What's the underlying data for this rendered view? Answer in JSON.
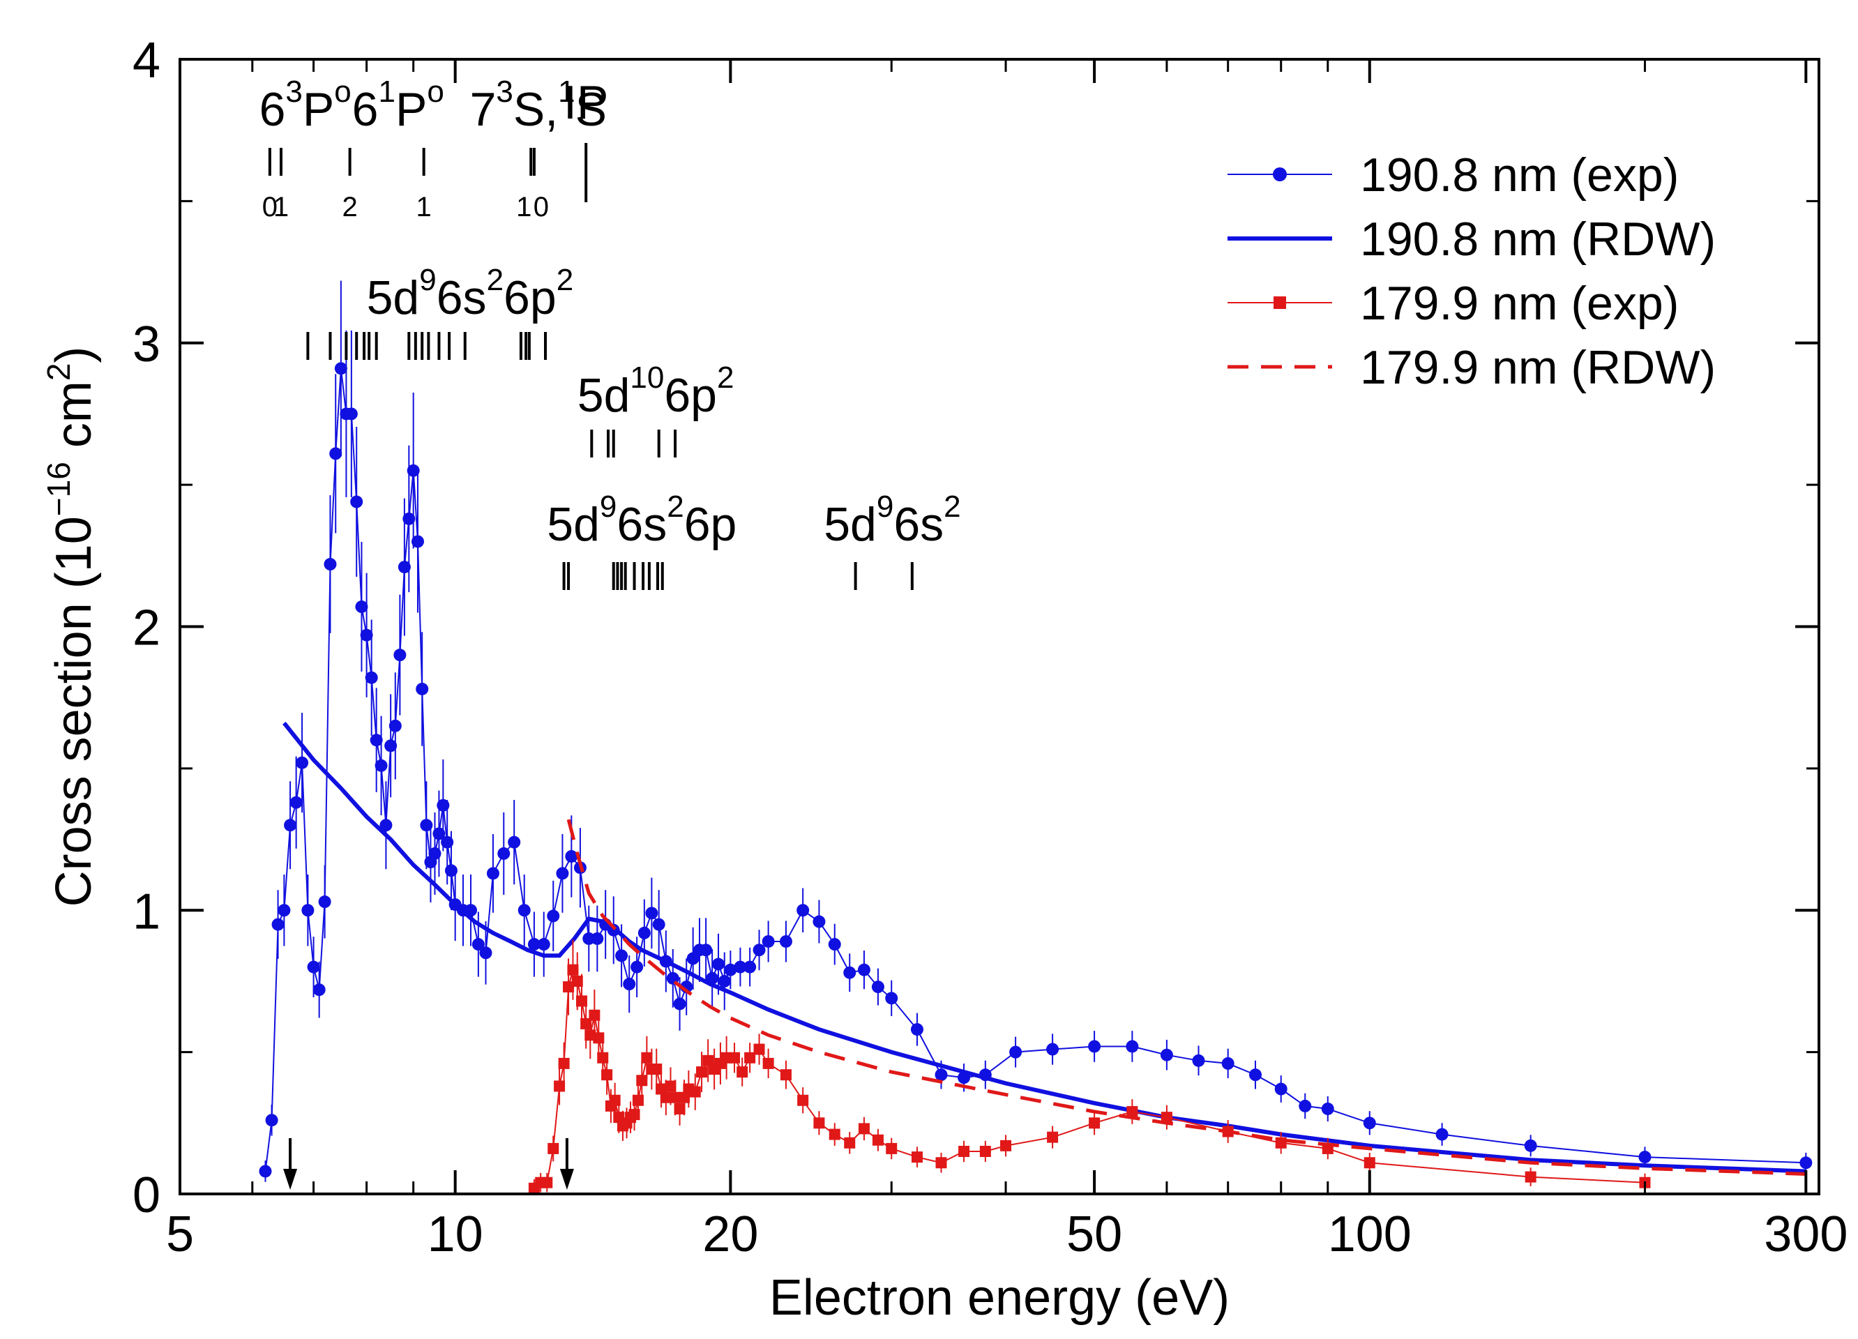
{
  "chart_data": {
    "type": "scatter",
    "xlabel": "Electron energy (eV)",
    "ylabel_parts": {
      "pre": "Cross section (10",
      "exp": "−16",
      "mid": " cm",
      "exp2": "2",
      "post": ")"
    },
    "xscale": "log",
    "xlim": [
      5,
      310
    ],
    "ylim": [
      0,
      4
    ],
    "x_ticks": [
      5,
      10,
      20,
      50,
      100,
      300
    ],
    "x_tick_labels": [
      "5",
      "10",
      "20",
      "50",
      "100",
      "300"
    ],
    "x_minor_ticks": [
      6,
      7,
      8,
      9,
      30,
      40,
      60,
      70,
      80,
      90,
      200
    ],
    "y_ticks": [
      0,
      1,
      2,
      3,
      4
    ],
    "y_tick_labels": [
      "0",
      "1",
      "2",
      "3",
      "4"
    ],
    "y_minor_ticks": [
      0.5,
      1.5,
      2.5,
      3.5
    ],
    "legend_position": "top-right",
    "series": [
      {
        "name": "190.8 nm (exp)",
        "color": "#1010e0",
        "marker": "circle",
        "line": "thin-solid",
        "x": [
          6.2,
          6.3,
          6.4,
          6.5,
          6.6,
          6.7,
          6.8,
          6.9,
          7.0,
          7.1,
          7.2,
          7.3,
          7.4,
          7.5,
          7.6,
          7.7,
          7.8,
          7.9,
          8.0,
          8.1,
          8.2,
          8.3,
          8.4,
          8.5,
          8.6,
          8.7,
          8.8,
          8.9,
          9.0,
          9.1,
          9.2,
          9.3,
          9.4,
          9.5,
          9.6,
          9.7,
          9.8,
          9.9,
          10.0,
          10.2,
          10.4,
          10.6,
          10.8,
          11.0,
          11.3,
          11.6,
          11.9,
          12.2,
          12.5,
          12.8,
          13.1,
          13.4,
          13.7,
          14.0,
          14.3,
          14.6,
          14.9,
          15.2,
          15.5,
          15.8,
          16.1,
          16.4,
          16.7,
          17.0,
          17.3,
          17.6,
          17.9,
          18.2,
          18.5,
          18.8,
          19.1,
          19.4,
          19.7,
          20.0,
          20.5,
          21.0,
          21.5,
          22.0,
          23.0,
          24.0,
          25.0,
          26.0,
          27.0,
          28.0,
          29.0,
          30.0,
          32.0,
          34.0,
          36.0,
          38.0,
          41.0,
          45.0,
          50.0,
          55.0,
          60.0,
          65.0,
          70.0,
          75.0,
          80.0,
          85.0,
          90.0,
          100.0,
          120.0,
          150.0,
          200.0,
          300.0
        ],
        "y": [
          0.08,
          0.26,
          0.95,
          1.0,
          1.3,
          1.38,
          1.52,
          1.0,
          0.8,
          0.72,
          1.03,
          2.22,
          2.61,
          2.91,
          2.75,
          2.75,
          2.44,
          2.07,
          1.97,
          1.82,
          1.6,
          1.51,
          1.3,
          1.58,
          1.65,
          1.9,
          2.21,
          2.38,
          2.55,
          2.3,
          1.78,
          1.3,
          1.17,
          1.2,
          1.27,
          1.37,
          1.24,
          1.14,
          1.02,
          1.0,
          1.0,
          0.88,
          0.85,
          1.13,
          1.2,
          1.24,
          1.0,
          0.88,
          0.88,
          0.98,
          1.13,
          1.19,
          1.15,
          0.9,
          0.9,
          0.95,
          0.93,
          0.84,
          0.74,
          0.8,
          0.92,
          0.99,
          0.95,
          0.82,
          0.76,
          0.67,
          0.73,
          0.83,
          0.86,
          0.86,
          0.76,
          0.81,
          0.75,
          0.79,
          0.8,
          0.8,
          0.86,
          0.89,
          0.89,
          1.0,
          0.96,
          0.88,
          0.78,
          0.79,
          0.73,
          0.69,
          0.58,
          0.42,
          0.41,
          0.42,
          0.5,
          0.51,
          0.52,
          0.52,
          0.49,
          0.47,
          0.46,
          0.42,
          0.37,
          0.31,
          0.3,
          0.25,
          0.21,
          0.17,
          0.13,
          0.11
        ]
      },
      {
        "name": "190.8 nm (RDW)",
        "color": "#1010e0",
        "marker": "none",
        "line": "thick-solid",
        "x": [
          6.5,
          7.0,
          7.5,
          8.0,
          8.5,
          9.0,
          9.5,
          10.0,
          10.5,
          11.0,
          11.5,
          12.0,
          12.5,
          13.0,
          13.5,
          14.0,
          14.5,
          15.0,
          15.5,
          16.0,
          17.0,
          18.0,
          19.0,
          20.0,
          22.0,
          25.0,
          30.0,
          40.0,
          50.0,
          60.0,
          70.0,
          80.0,
          100.0,
          150.0,
          200.0,
          300.0
        ],
        "y": [
          1.66,
          1.53,
          1.43,
          1.33,
          1.25,
          1.16,
          1.09,
          1.02,
          0.96,
          0.92,
          0.89,
          0.86,
          0.84,
          0.84,
          0.9,
          0.97,
          0.96,
          0.93,
          0.89,
          0.86,
          0.82,
          0.78,
          0.74,
          0.71,
          0.65,
          0.58,
          0.5,
          0.39,
          0.32,
          0.27,
          0.24,
          0.21,
          0.17,
          0.12,
          0.1,
          0.08
        ]
      },
      {
        "name": "179.9 nm (exp)",
        "color": "#e01818",
        "marker": "square",
        "line": "thin-solid",
        "x": [
          12.2,
          12.4,
          12.6,
          12.8,
          13.0,
          13.15,
          13.3,
          13.45,
          13.6,
          13.75,
          13.9,
          14.05,
          14.2,
          14.35,
          14.5,
          14.65,
          14.8,
          14.95,
          15.1,
          15.25,
          15.4,
          15.55,
          15.7,
          15.85,
          16.0,
          16.2,
          16.4,
          16.6,
          16.8,
          17.0,
          17.2,
          17.4,
          17.6,
          17.8,
          18.0,
          18.3,
          18.6,
          18.9,
          19.2,
          19.5,
          19.8,
          20.2,
          20.6,
          21.0,
          21.5,
          22.0,
          23.0,
          24.0,
          25.0,
          26.0,
          27.0,
          28.0,
          29.0,
          30.0,
          32.0,
          34.0,
          36.0,
          38.0,
          40.0,
          45.0,
          50.0,
          55.0,
          60.0,
          70.0,
          80.0,
          90.0,
          100.0,
          150.0,
          200.0
        ],
        "y": [
          0.02,
          0.04,
          0.04,
          0.16,
          0.38,
          0.46,
          0.73,
          0.79,
          0.75,
          0.68,
          0.6,
          0.56,
          0.63,
          0.55,
          0.48,
          0.42,
          0.31,
          0.33,
          0.27,
          0.24,
          0.25,
          0.27,
          0.28,
          0.33,
          0.4,
          0.48,
          0.44,
          0.44,
          0.37,
          0.34,
          0.38,
          0.34,
          0.3,
          0.34,
          0.37,
          0.36,
          0.43,
          0.47,
          0.44,
          0.46,
          0.48,
          0.48,
          0.43,
          0.48,
          0.51,
          0.46,
          0.42,
          0.33,
          0.25,
          0.21,
          0.18,
          0.23,
          0.19,
          0.16,
          0.13,
          0.11,
          0.15,
          0.15,
          0.17,
          0.2,
          0.25,
          0.29,
          0.27,
          0.22,
          0.18,
          0.16,
          0.11,
          0.06,
          0.04
        ]
      },
      {
        "name": "179.9 nm (RDW)",
        "color": "#e01818",
        "marker": "none",
        "line": "dashed",
        "x": [
          13.3,
          13.6,
          14.0,
          14.5,
          15.0,
          15.5,
          16.0,
          17.0,
          18.0,
          19.0,
          20.0,
          22.0,
          25.0,
          30.0,
          40.0,
          50.0,
          60.0,
          70.0,
          80.0,
          100.0,
          150.0,
          200.0,
          300.0
        ],
        "y": [
          1.32,
          1.2,
          1.06,
          0.98,
          0.93,
          0.88,
          0.84,
          0.77,
          0.71,
          0.66,
          0.62,
          0.56,
          0.5,
          0.43,
          0.35,
          0.29,
          0.25,
          0.22,
          0.19,
          0.16,
          0.11,
          0.09,
          0.07
        ]
      }
    ],
    "annotations": {
      "group1": {
        "labels": [
          {
            "pre": "6",
            "sup": "3",
            "post": "P",
            "sup2": "o"
          },
          {
            "pre": "6",
            "sup": "1",
            "post": "P",
            "sup2": "o"
          },
          {
            "pre": "7",
            "sup": "3",
            "post": "S,",
            "sup2": "1",
            "post2": "S"
          },
          {
            "pre": "IP",
            "sup": "",
            "post": "",
            "sup2": ""
          }
        ],
        "ticks": [
          6.27,
          6.45,
          7.67,
          9.24,
          12.1,
          12.2
        ],
        "ip": 13.9,
        "j_labels": [
          "0",
          "1",
          "2",
          "1",
          "1",
          "0"
        ]
      },
      "group2_label": {
        "a": "5d",
        "b": "9",
        "c": "6s",
        "d": "2",
        "e": "6p",
        "f": "2"
      },
      "group2_ticks": [
        6.9,
        7.3,
        7.6,
        7.8,
        7.95,
        8.05,
        8.2,
        8.9,
        9.05,
        9.2,
        9.35,
        9.6,
        9.85,
        10.25,
        11.8,
        11.95,
        12.05,
        12.55
      ],
      "group3_label": {
        "a": "5d",
        "b": "10",
        "c": "6p",
        "d": "2"
      },
      "group3_ticks": [
        14.1,
        14.7,
        14.9,
        16.7,
        17.4
      ],
      "group4_label": {
        "a": "5d",
        "b": "9",
        "c": "6s",
        "d": "2",
        "e": "6p"
      },
      "group4_ticks": [
        13.15,
        13.3,
        14.9,
        15.05,
        15.2,
        15.35,
        15.7,
        16.05,
        16.3,
        16.65,
        16.85
      ],
      "group5_label": {
        "a": "5d",
        "b": "9",
        "c": "6s",
        "d": "2"
      },
      "group5_ticks": [
        27.4,
        31.6
      ],
      "arrows_x": [
        6.6,
        13.25
      ]
    }
  }
}
